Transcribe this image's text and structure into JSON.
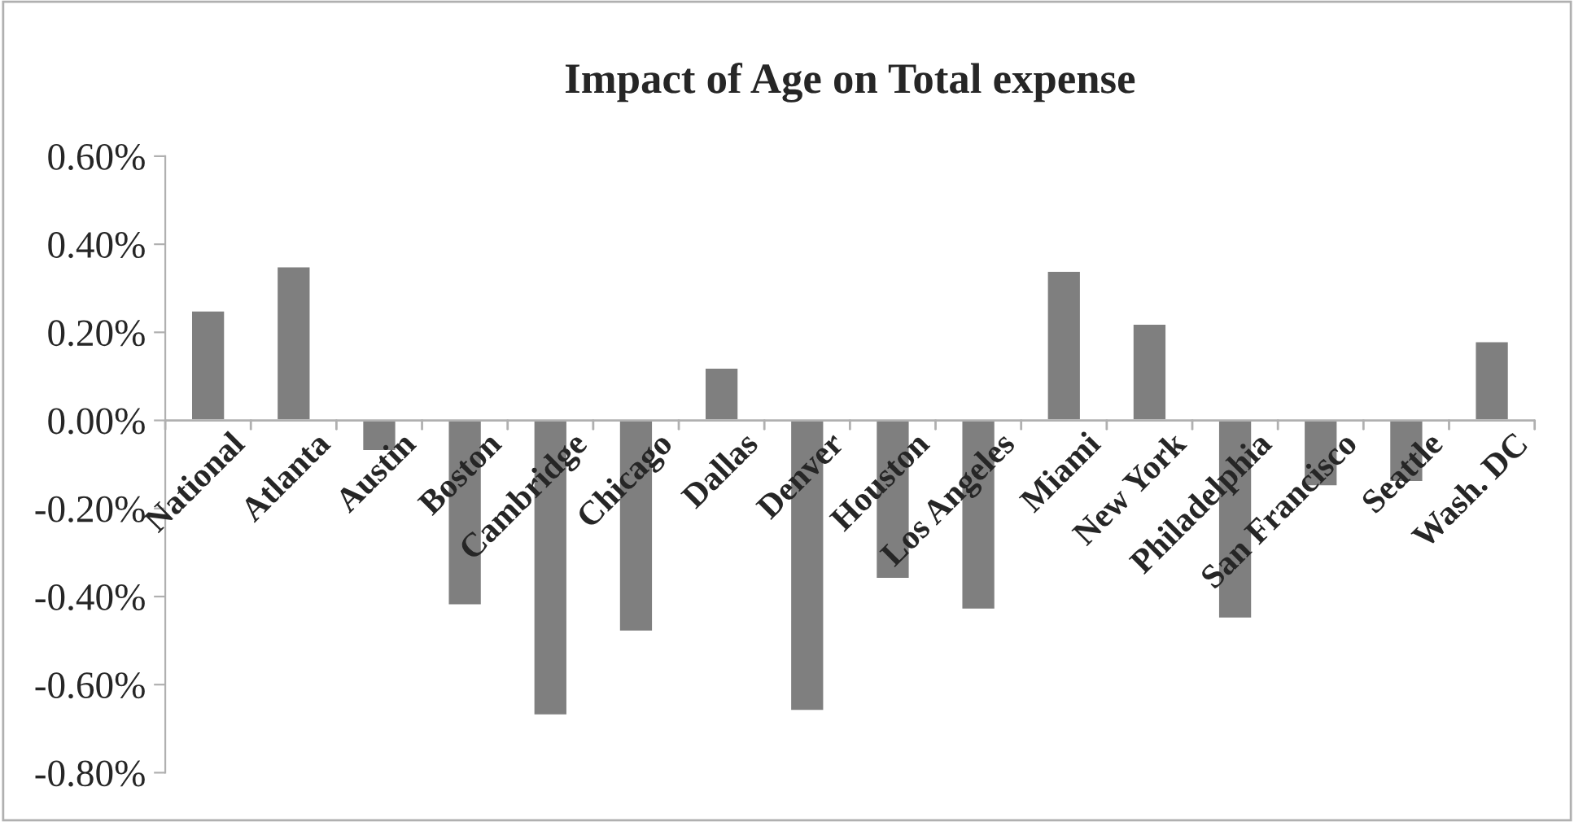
{
  "chart_data": {
    "type": "bar",
    "title": "Impact of Age on Total expense",
    "categories": [
      "National",
      "Atlanta",
      "Austin",
      "Boston",
      "Cambridge",
      "Chicago",
      "Dallas",
      "Denver",
      "Houston",
      "Los Angeles",
      "Miami",
      "New York",
      "Philadelphia",
      "San Francisco",
      "Seattle",
      "Wash. DC"
    ],
    "values": [
      0.25,
      0.35,
      -0.07,
      -0.42,
      -0.67,
      -0.48,
      0.12,
      -0.66,
      -0.36,
      -0.43,
      0.34,
      0.22,
      -0.45,
      -0.15,
      -0.14,
      0.18
    ],
    "color": "#7f7f7f",
    "ylim": [
      -0.8,
      0.6
    ],
    "yticks": [
      {
        "value": -0.8,
        "label": "-0.80%"
      },
      {
        "value": -0.6,
        "label": "-0.60%"
      },
      {
        "value": -0.4,
        "label": "-0.40%"
      },
      {
        "value": -0.2,
        "label": "-0.20%"
      },
      {
        "value": 0,
        "label": "0.00%"
      },
      {
        "value": 0.2,
        "label": "0.20%"
      },
      {
        "value": 0.4,
        "label": "0.40%"
      },
      {
        "value": 0.6,
        "label": "0.60%"
      }
    ],
    "grid": false,
    "legend": false
  }
}
